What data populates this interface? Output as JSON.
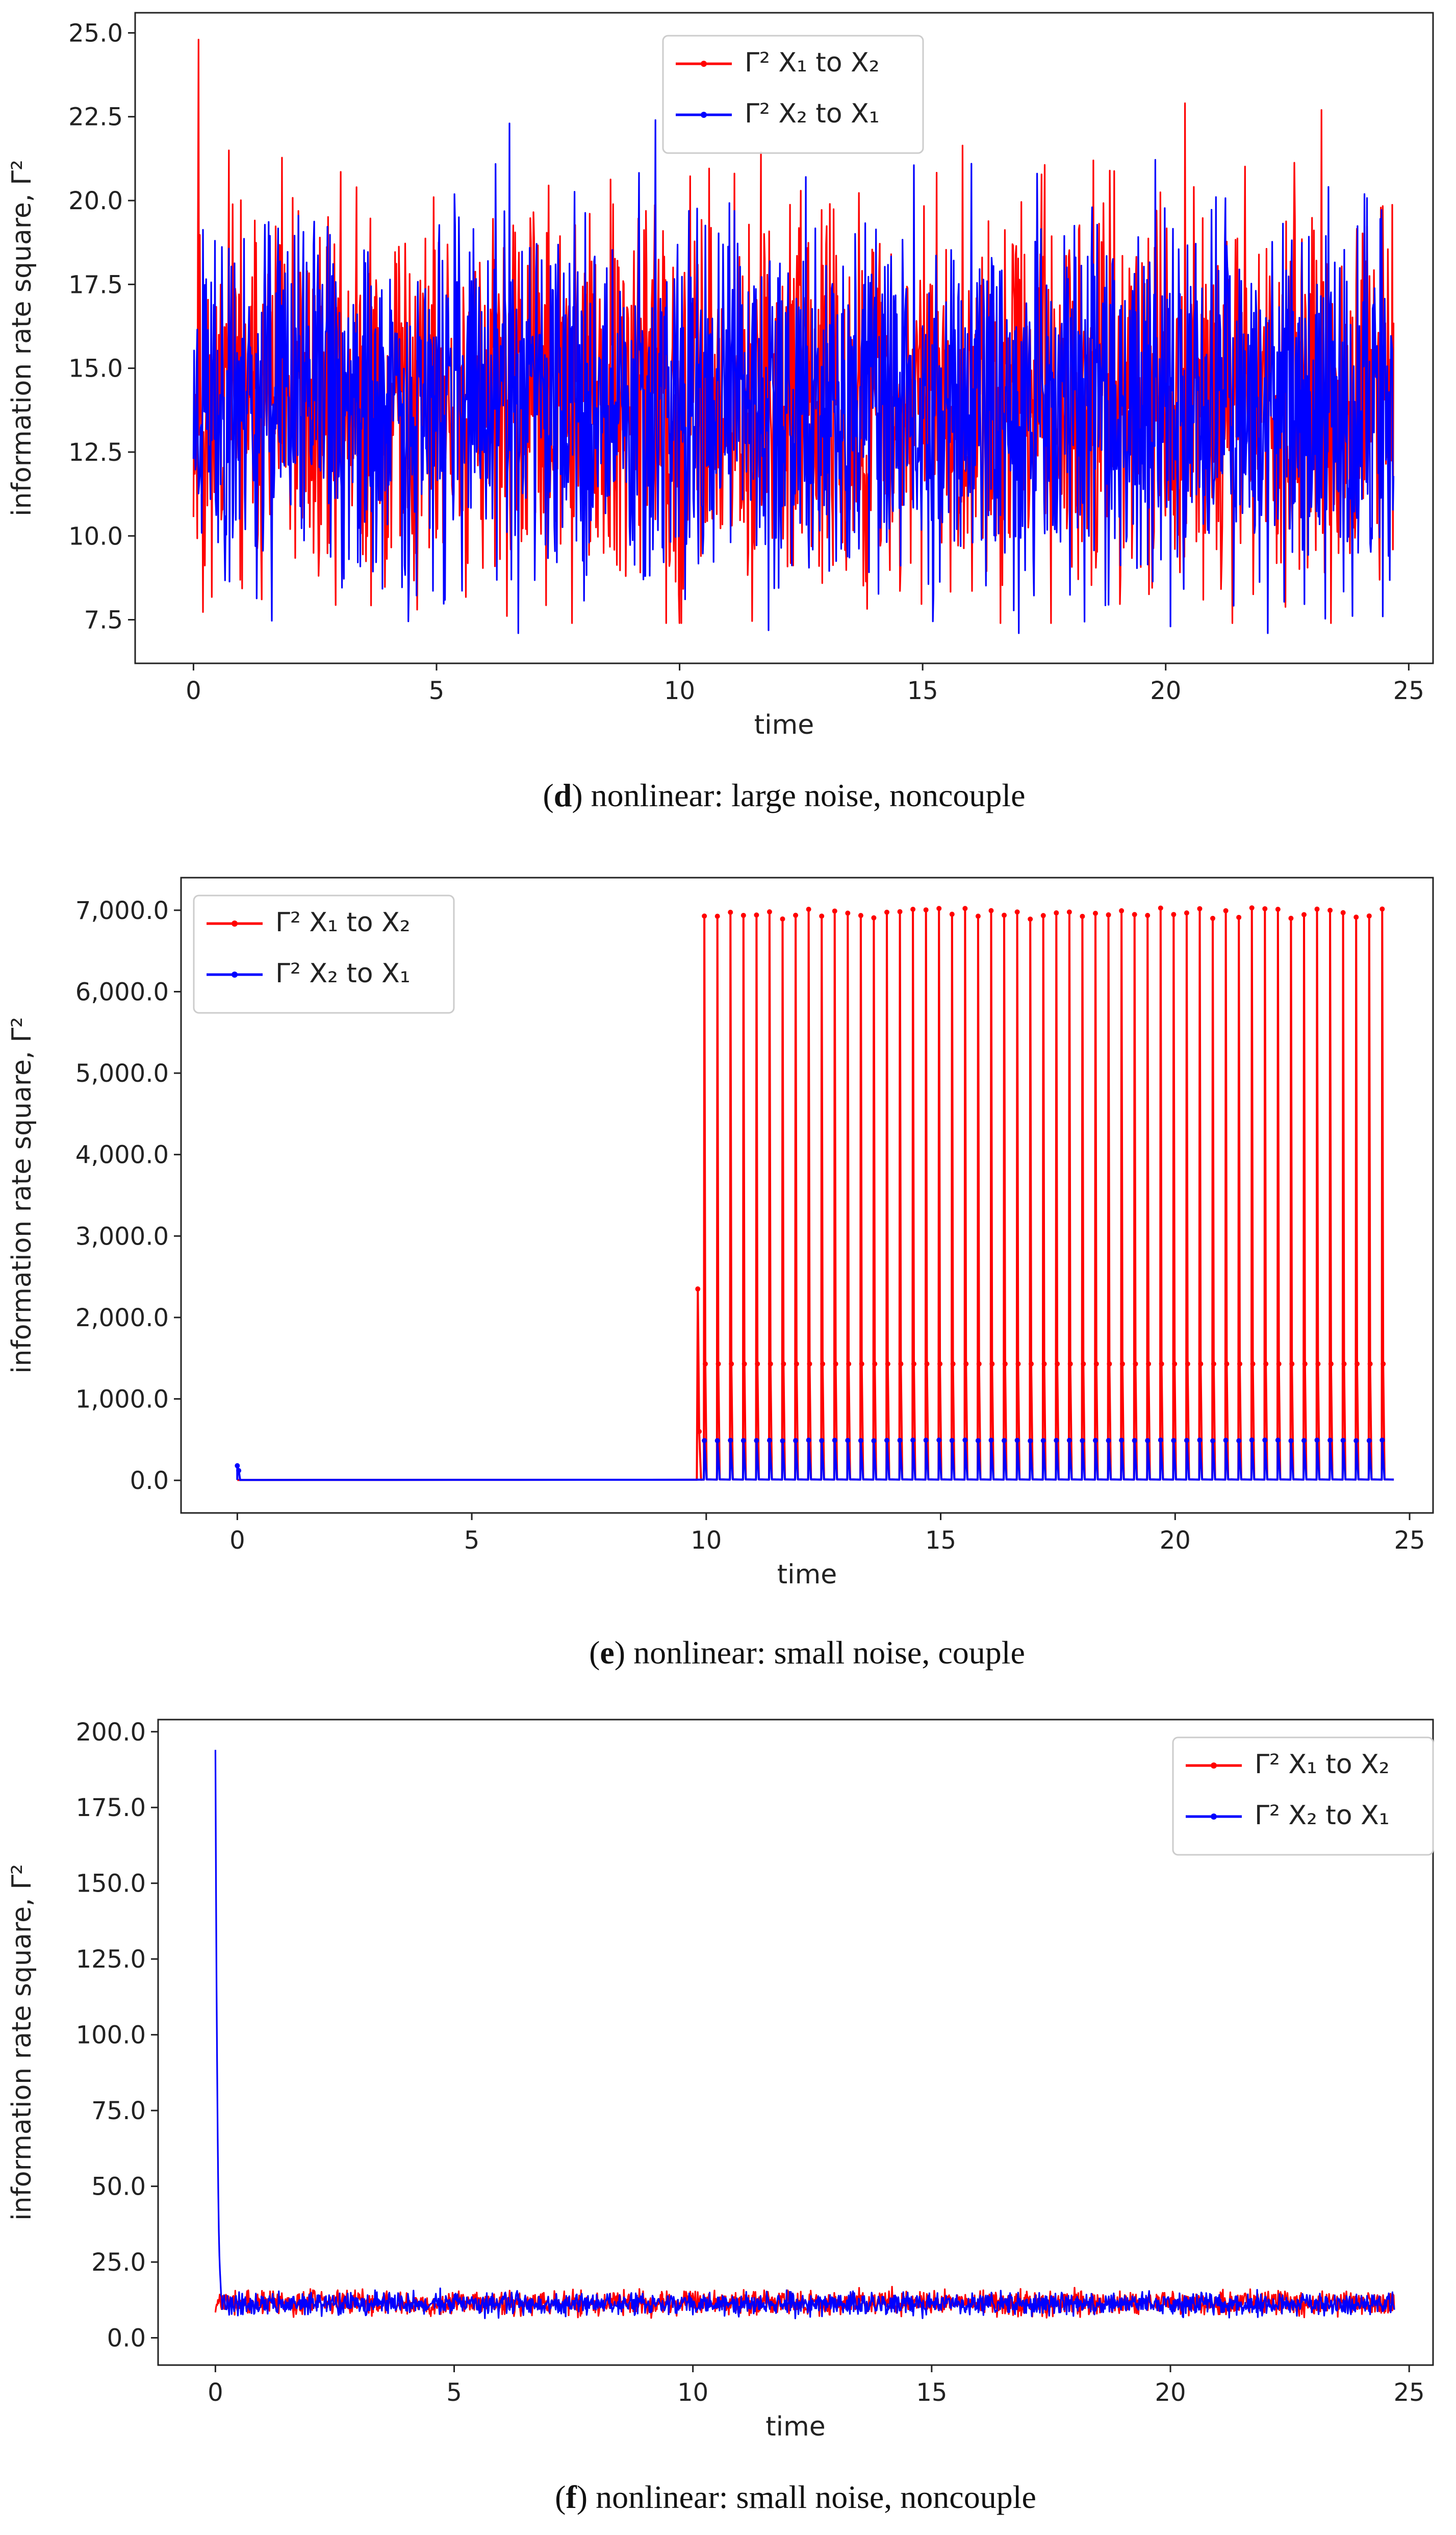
{
  "colors": {
    "series1": "#ff0000",
    "series2": "#0000ff",
    "axis": "#222222"
  },
  "chart_data": [
    {
      "type": "line",
      "panel": "d",
      "caption_letter": "d",
      "caption_text": " nonlinear: large noise, noncouple",
      "xlabel": "time",
      "ylabel": "information rate square, Γ²",
      "xlim": [
        -1.2,
        25.5
      ],
      "ylim": [
        6.2,
        25.6
      ],
      "xticks": [
        0,
        5,
        10,
        15,
        20,
        25
      ],
      "xtick_labels": [
        "0",
        "5",
        "10",
        "15",
        "20",
        "25"
      ],
      "yticks": [
        7.5,
        10.0,
        12.5,
        15.0,
        17.5,
        20.0,
        22.5,
        25.0
      ],
      "ytick_labels": [
        "7.5",
        "10.0",
        "12.5",
        "15.0",
        "17.5",
        "20.0",
        "22.5",
        "25.0"
      ],
      "legend_position": "top-center",
      "series": [
        {
          "name": "Γ² X₁ to X₂",
          "pattern": "noise",
          "base": 14.0,
          "amp": 3.4,
          "min": 7.4,
          "max": 24.8,
          "spikes": [
            [
              0.1,
              24.8
            ],
            [
              20.4,
              22.9
            ],
            [
              23.2,
              22.7
            ],
            [
              4.6,
              7.8
            ],
            [
              23.4,
              7.4
            ]
          ],
          "seed": 11
        },
        {
          "name": "Γ² X₂ to X₁",
          "pattern": "noise",
          "base": 14.0,
          "amp": 3.3,
          "min": 7.1,
          "max": 22.4,
          "spikes": [
            [
              6.5,
              22.3
            ],
            [
              9.5,
              22.4
            ],
            [
              22.1,
              7.1
            ],
            [
              20.1,
              7.3
            ]
          ],
          "seed": 23
        }
      ]
    },
    {
      "type": "line",
      "panel": "e",
      "caption_letter": "e",
      "caption_text": " nonlinear: small noise, couple",
      "xlabel": "time",
      "ylabel": "information rate square, Γ²",
      "xlim": [
        -1.2,
        25.5
      ],
      "ylim": [
        -400,
        7400
      ],
      "xticks": [
        0,
        5,
        10,
        15,
        20,
        25
      ],
      "xtick_labels": [
        "0",
        "5",
        "10",
        "15",
        "20",
        "25"
      ],
      "yticks": [
        0,
        1000,
        2000,
        3000,
        4000,
        5000,
        6000,
        7000
      ],
      "ytick_labels": [
        "0.0",
        "1,000.0",
        "2,000.0",
        "3,000.0",
        "4,000.0",
        "5,000.0",
        "6,000.0",
        "7,000.0"
      ],
      "legend_position": "top-left",
      "series": [
        {
          "name": "Γ² X₁ to X₂",
          "pattern": "periodic",
          "start": 9.95,
          "period": 0.278,
          "peak": 6960,
          "mid": 1430,
          "early_spike": [
            9.8,
            2350
          ]
        },
        {
          "name": "Γ² X₂ to X₁",
          "pattern": "periodic",
          "start": 9.95,
          "period": 0.278,
          "peak": 490,
          "mid": 0,
          "early_spike": [
            0.0,
            180
          ]
        }
      ]
    },
    {
      "type": "line",
      "panel": "f",
      "caption_letter": "f",
      "caption_text": " nonlinear: small noise, noncouple",
      "xlabel": "time",
      "ylabel": "information rate square, Γ²",
      "xlim": [
        -1.2,
        25.5
      ],
      "ylim": [
        -9,
        204
      ],
      "xticks": [
        0,
        5,
        10,
        15,
        20,
        25
      ],
      "xtick_labels": [
        "0",
        "5",
        "10",
        "15",
        "20",
        "25"
      ],
      "yticks": [
        0,
        25,
        50,
        75,
        100,
        125,
        150,
        175,
        200
      ],
      "ytick_labels": [
        "0.0",
        "25.0",
        "50.0",
        "75.0",
        "100.0",
        "125.0",
        "150.0",
        "175.0",
        "200.0"
      ],
      "legend_position": "top-right",
      "series": [
        {
          "name": "Γ² X₁ to X₂",
          "pattern": "noise",
          "base": 11.5,
          "amp": 2.4,
          "min": 5.0,
          "max": 19.0,
          "spikes": [],
          "seed": 37
        },
        {
          "name": "Γ² X₂ to X₁",
          "pattern": "noise",
          "base": 11.2,
          "amp": 2.2,
          "min": 5.5,
          "max": 18.0,
          "spikes": [],
          "initial_decay": [
            194,
            151,
            116,
            91,
            66,
            48,
            35,
            27,
            22,
            18,
            14
          ],
          "seed": 41
        }
      ]
    }
  ]
}
